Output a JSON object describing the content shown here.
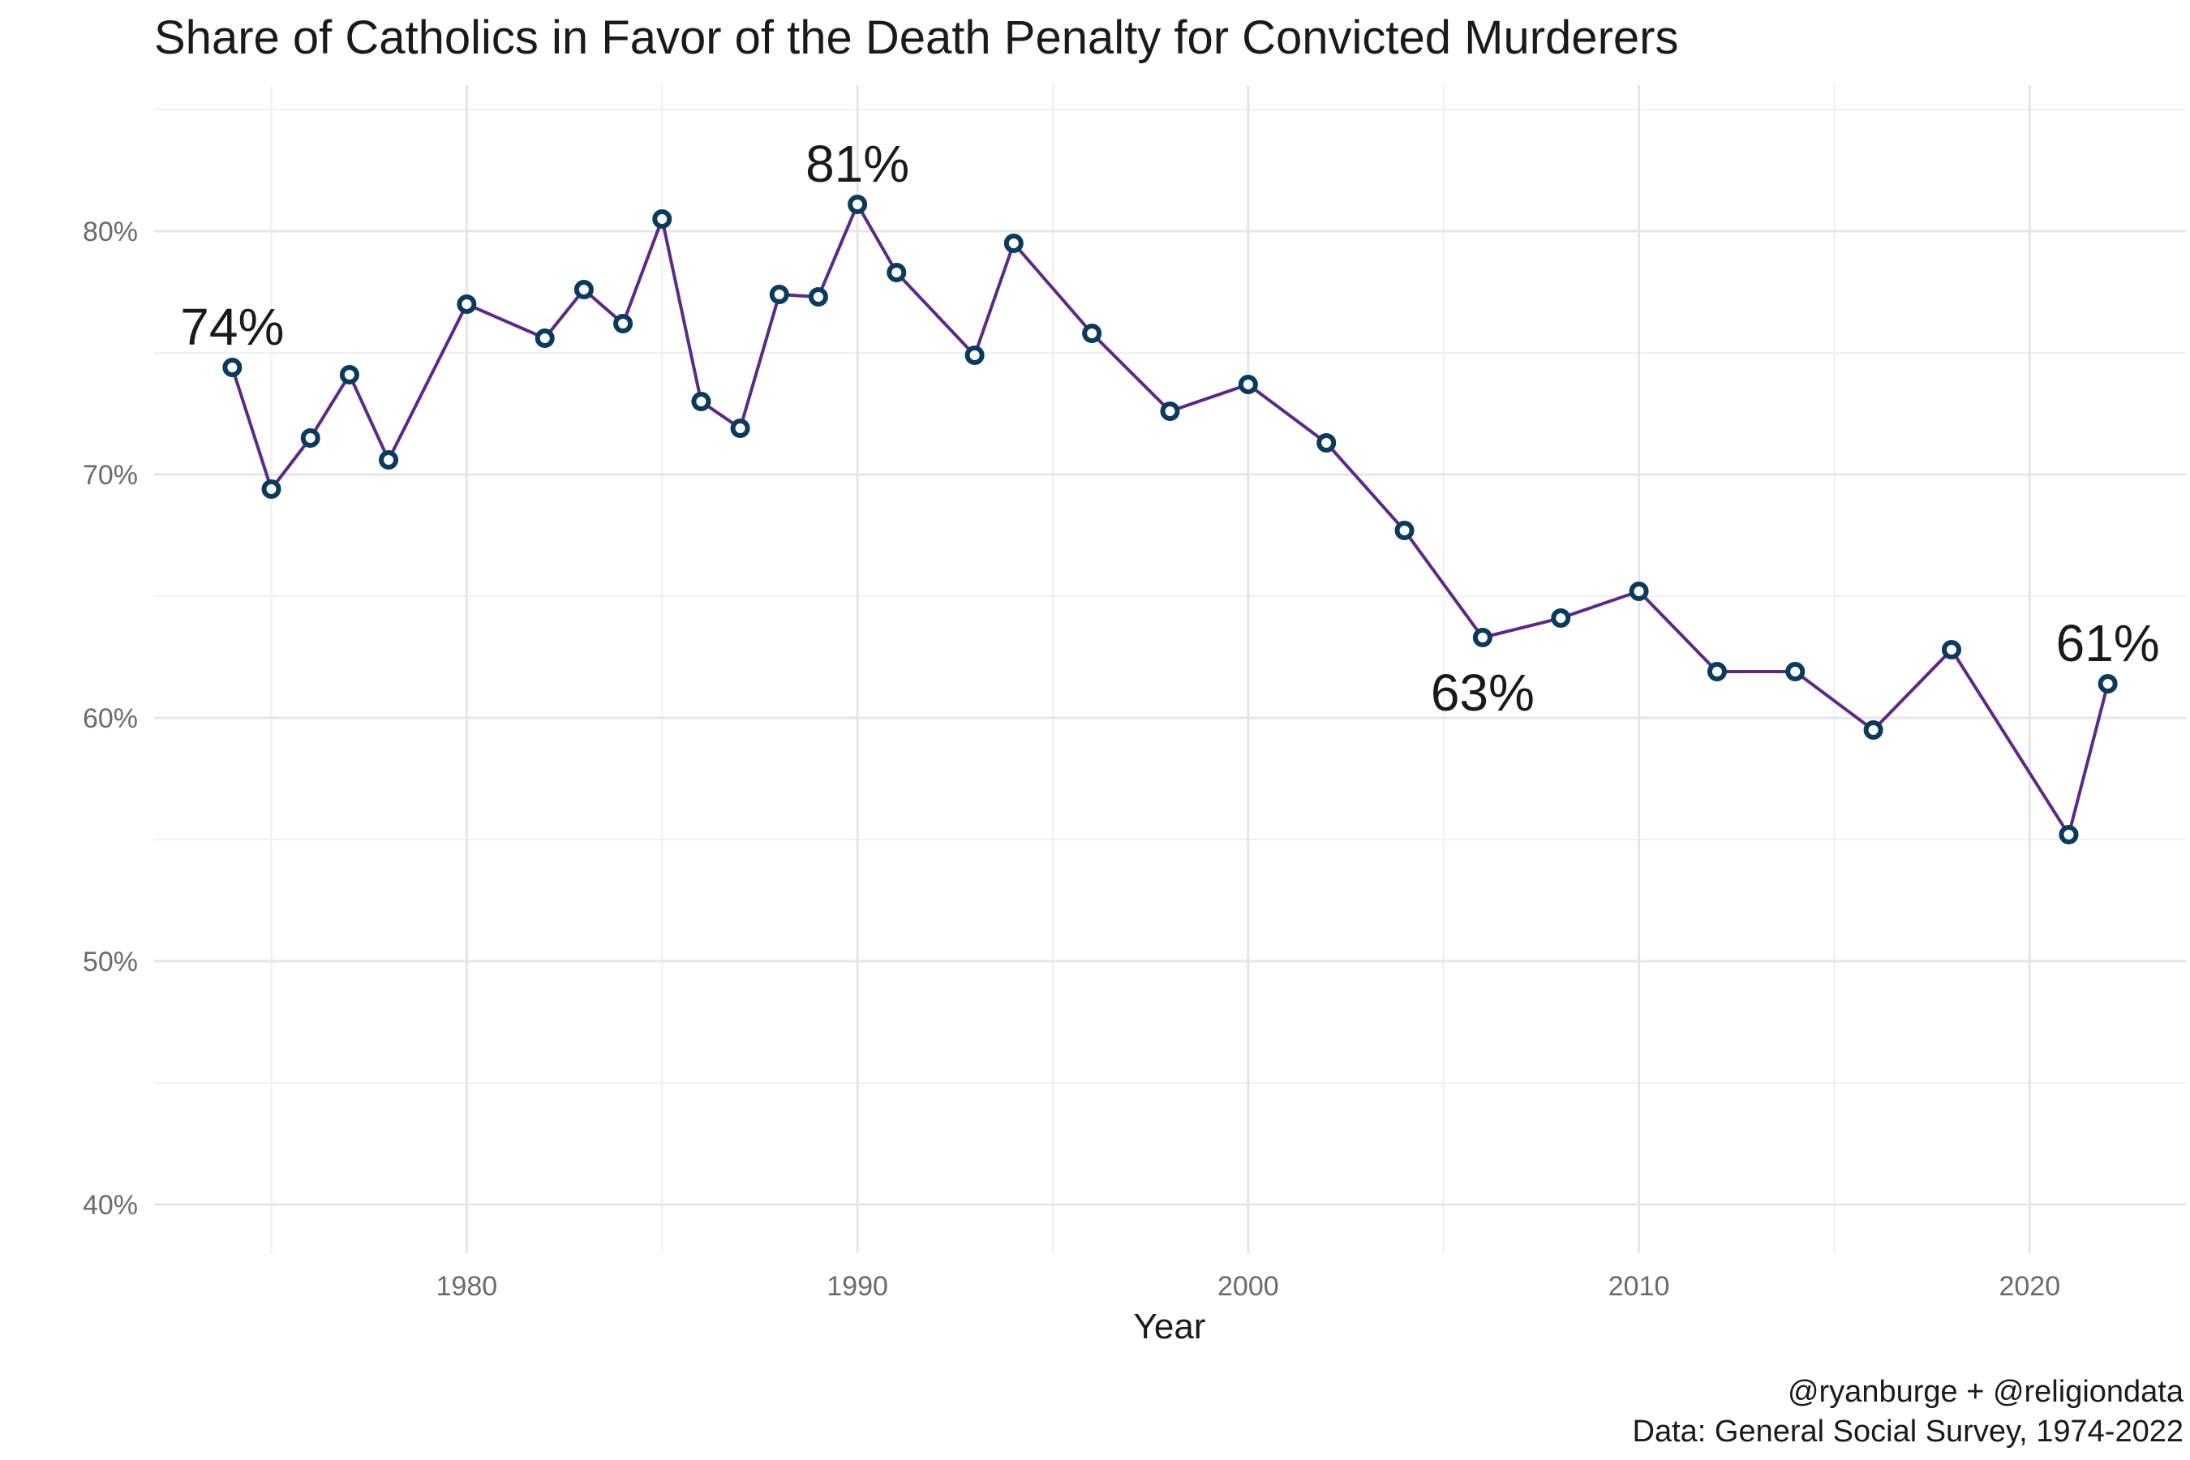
{
  "chart_data": {
    "type": "line",
    "title": "Share of Catholics in Favor of the Death Penalty for Convicted Murderers",
    "xlabel": "Year",
    "ylabel": "",
    "xlim": [
      1972,
      2024
    ],
    "ylim": [
      38,
      86
    ],
    "x_ticks": [
      1980,
      1990,
      2000,
      2010,
      2020
    ],
    "x_minor_ticks": [
      1975,
      1985,
      1995,
      2005,
      2015
    ],
    "y_ticks": [
      40,
      50,
      60,
      70,
      80
    ],
    "y_minor_ticks": [
      45,
      55,
      65,
      75,
      85
    ],
    "y_tick_format": "{v}%",
    "grid": true,
    "colors": {
      "line": "#5b2a86",
      "point_stroke": "#0b3a5a",
      "point_fill": "#ffffff"
    },
    "series": [
      {
        "x": [
          1974,
          1975,
          1976,
          1977,
          1978,
          1980,
          1982,
          1983,
          1984,
          1985,
          1986,
          1987,
          1988,
          1989,
          1990,
          1991,
          1993,
          1994,
          1996,
          1998,
          2000,
          2002,
          2004,
          2006,
          2008,
          2010,
          2012,
          2014,
          2016,
          2018,
          2021,
          2022
        ],
        "values": [
          74.4,
          69.4,
          71.5,
          74.1,
          70.6,
          77.0,
          75.6,
          77.6,
          76.2,
          80.5,
          73.0,
          71.9,
          77.4,
          77.3,
          81.1,
          78.3,
          74.9,
          79.5,
          75.8,
          72.6,
          73.7,
          71.3,
          67.7,
          63.3,
          64.1,
          65.2,
          61.9,
          61.9,
          59.5,
          62.8,
          55.2,
          61.4
        ]
      }
    ],
    "annotations": [
      {
        "text": "74%",
        "x": 1974,
        "y": 74.4,
        "position": "above"
      },
      {
        "text": "81%",
        "x": 1990,
        "y": 81.1,
        "position": "above"
      },
      {
        "text": "63%",
        "x": 2006,
        "y": 63.3,
        "position": "below"
      },
      {
        "text": "61%",
        "x": 2022,
        "y": 61.4,
        "position": "above"
      }
    ],
    "caption": [
      "@ryanburge + @religiondata",
      "Data: General Social Survey, 1974-2022"
    ]
  }
}
